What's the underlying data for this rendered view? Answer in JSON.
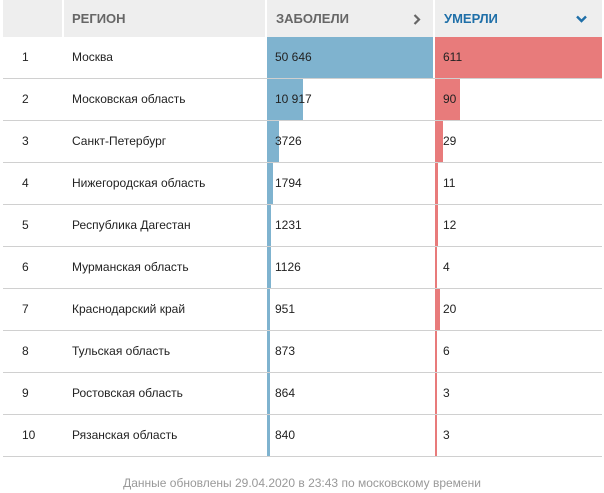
{
  "header": {
    "region": "РЕГИОН",
    "cases": "ЗАБОЛЕЛИ",
    "deaths": "УМЕРЛИ"
  },
  "colors": {
    "cases_bar": "#7fb3cf",
    "deaths_bar": "#e87b7b",
    "active_header": "#1f6fa8"
  },
  "icons": {
    "cases_sort": "chevron-right-icon",
    "deaths_sort": "chevron-down-icon"
  },
  "rows": [
    {
      "rank": "1",
      "region": "Москва",
      "cases": "50 646",
      "cases_n": 50646,
      "deaths": "611",
      "deaths_n": 611
    },
    {
      "rank": "2",
      "region": "Московская область",
      "cases": "10 917",
      "cases_n": 10917,
      "deaths": "90",
      "deaths_n": 90
    },
    {
      "rank": "3",
      "region": "Санкт-Петербург",
      "cases": "3726",
      "cases_n": 3726,
      "deaths": "29",
      "deaths_n": 29
    },
    {
      "rank": "4",
      "region": "Нижегородская область",
      "cases": "1794",
      "cases_n": 1794,
      "deaths": "11",
      "deaths_n": 11
    },
    {
      "rank": "5",
      "region": "Республика Дагестан",
      "cases": "1231",
      "cases_n": 1231,
      "deaths": "12",
      "deaths_n": 12
    },
    {
      "rank": "6",
      "region": "Мурманская область",
      "cases": "1126",
      "cases_n": 1126,
      "deaths": "4",
      "deaths_n": 4
    },
    {
      "rank": "7",
      "region": "Краснодарский край",
      "cases": "951",
      "cases_n": 951,
      "deaths": "20",
      "deaths_n": 20
    },
    {
      "rank": "8",
      "region": "Тульская область",
      "cases": "873",
      "cases_n": 873,
      "deaths": "6",
      "deaths_n": 6
    },
    {
      "rank": "9",
      "region": "Ростовская область",
      "cases": "864",
      "cases_n": 864,
      "deaths": "3",
      "deaths_n": 3
    },
    {
      "rank": "10",
      "region": "Рязанская область",
      "cases": "840",
      "cases_n": 840,
      "deaths": "3",
      "deaths_n": 3
    }
  ],
  "footer": "Данные обновлены 29.04.2020 в 23:43 по московскому времени"
}
